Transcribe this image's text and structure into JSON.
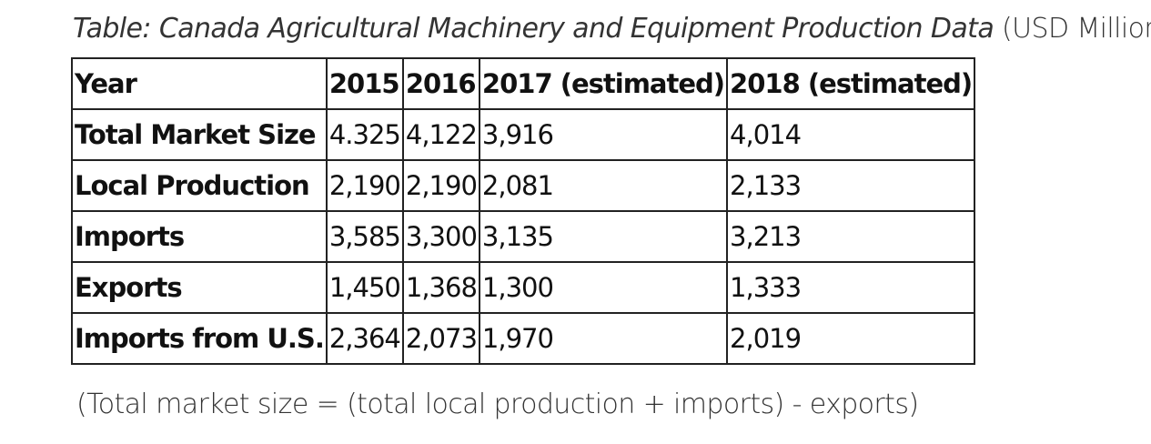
{
  "caption": {
    "title_italic": "Table: Canada Agricultural Machinery and Equipment Production Data",
    "unit": "(USD Millions)"
  },
  "table": {
    "headers": [
      "Year",
      "2015",
      "2016",
      "2017 (estimated)",
      "2018 (estimated)"
    ],
    "rows": [
      {
        "label": "Total Market Size",
        "values": [
          "4.325",
          "4,122",
          "3,916",
          "4,014"
        ]
      },
      {
        "label": "Local Production",
        "values": [
          "2,190",
          "2,190",
          "2,081",
          "2,133"
        ]
      },
      {
        "label": "Imports",
        "values": [
          "3,585",
          "3,300",
          "3,135",
          "3,213"
        ]
      },
      {
        "label": "Exports",
        "values": [
          "1,450",
          "1,368",
          "1,300",
          "1,333"
        ]
      },
      {
        "label": "Imports from U.S.",
        "values": [
          "2,364",
          "2,073",
          "1,970",
          "2,019"
        ]
      }
    ]
  },
  "footnote": "(Total market size = (total local production + imports) - exports)"
}
